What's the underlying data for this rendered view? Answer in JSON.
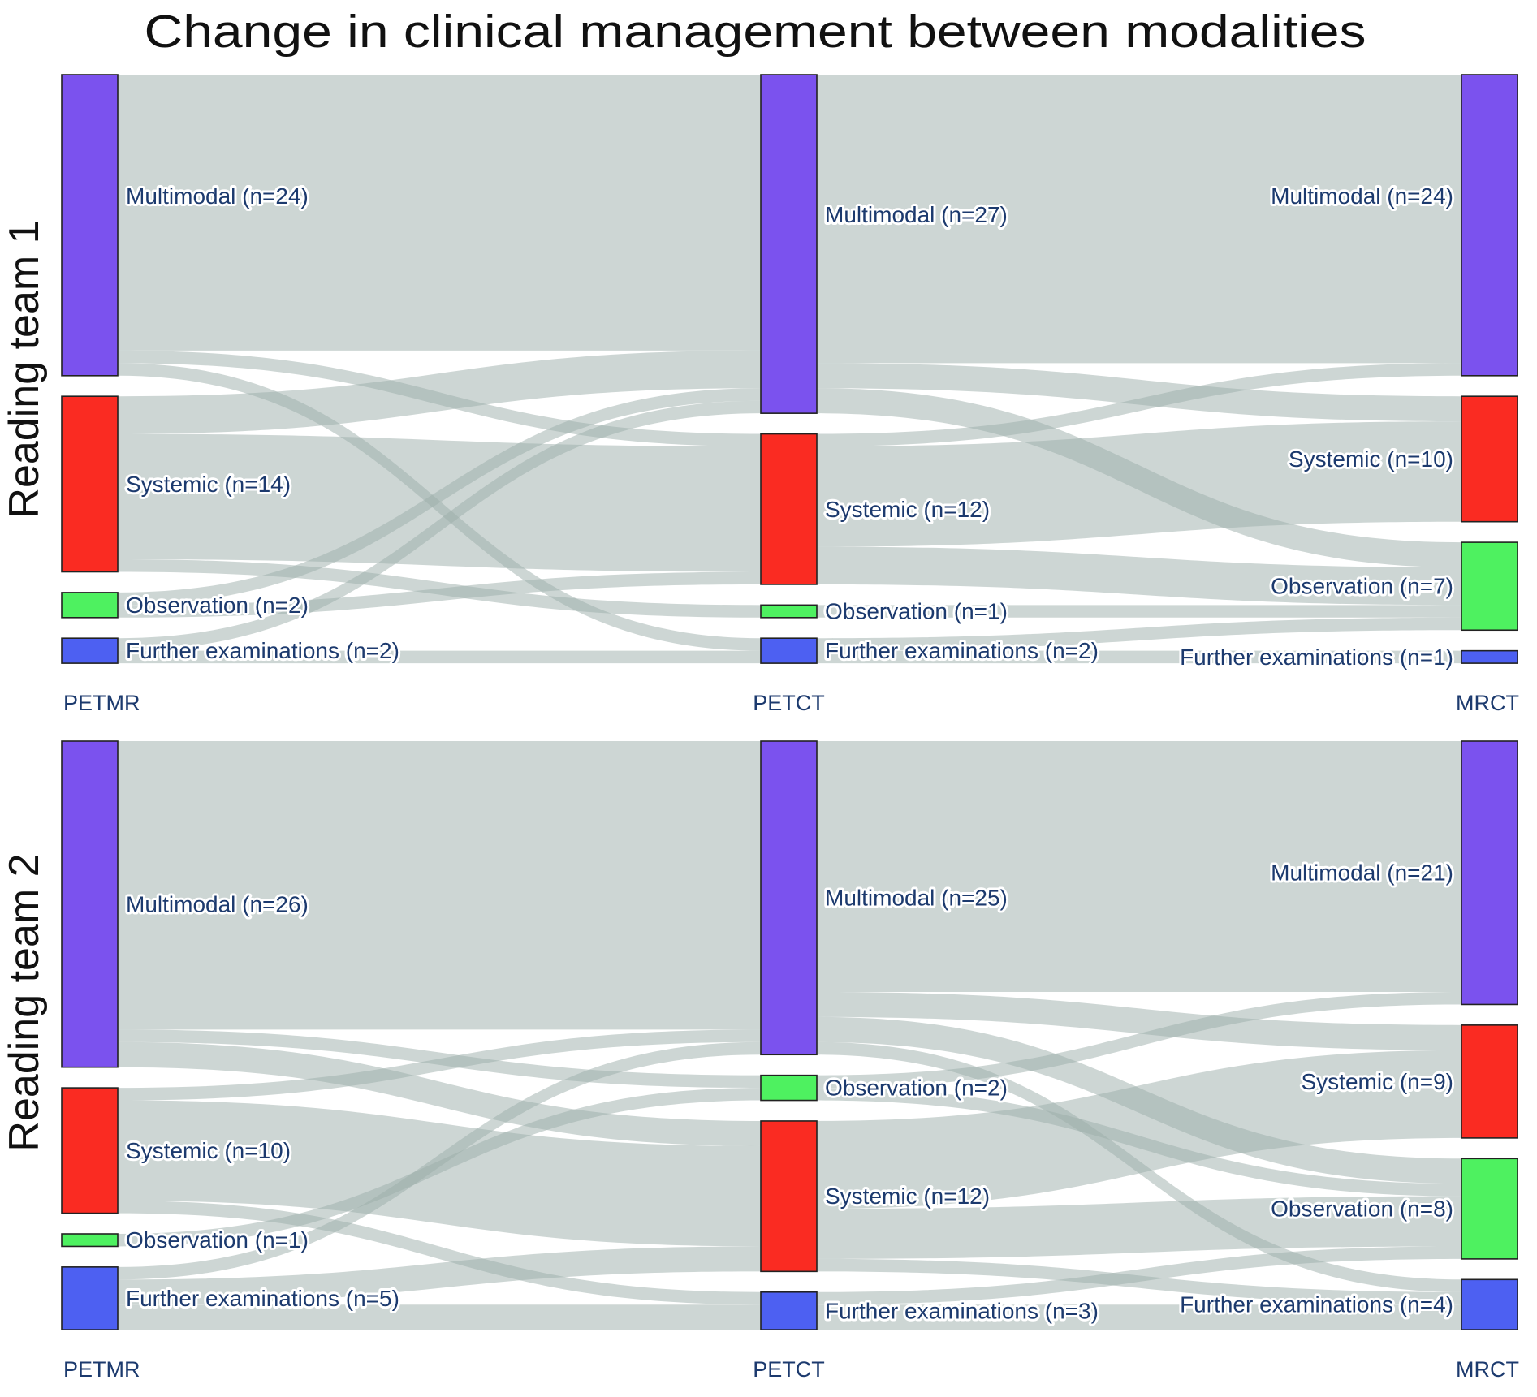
{
  "title": "Change in clinical management between modalities",
  "colors": {
    "Multimodal": "#7b52ee",
    "Systemic": "#fa2b22",
    "Observation": "#4ef160",
    "Further examinations": "#4d60f2",
    "node_stroke": "#222222",
    "flow": "#9bada9",
    "flow_opacity": 0.5,
    "label": "#1c3a6e",
    "title_color": "#111111",
    "row_label_color": "#111111"
  },
  "chart_data": {
    "type": "sankey",
    "title": "Change in clinical management between modalities",
    "diagrams": [
      {
        "row_label": "Reading team 1",
        "columns": [
          "PETMR",
          "PETCT",
          "MRCT"
        ],
        "nodes": [
          [
            {
              "category": "Multimodal",
              "value": 24,
              "label": "Multimodal (n=24)"
            },
            {
              "category": "Systemic",
              "value": 14,
              "label": "Systemic (n=14)"
            },
            {
              "category": "Observation",
              "value": 2,
              "label": "Observation (n=2)"
            },
            {
              "category": "Further examinations",
              "value": 2,
              "label": "Further examinations (n=2)"
            }
          ],
          [
            {
              "category": "Multimodal",
              "value": 27,
              "label": "Multimodal (n=27)"
            },
            {
              "category": "Systemic",
              "value": 12,
              "label": "Systemic (n=12)"
            },
            {
              "category": "Observation",
              "value": 1,
              "label": "Observation (n=1)"
            },
            {
              "category": "Further examinations",
              "value": 2,
              "label": "Further examinations (n=2)"
            }
          ],
          [
            {
              "category": "Multimodal",
              "value": 24,
              "label": "Multimodal (n=24)"
            },
            {
              "category": "Systemic",
              "value": 10,
              "label": "Systemic (n=10)"
            },
            {
              "category": "Observation",
              "value": 7,
              "label": "Observation (n=7)"
            },
            {
              "category": "Further examinations",
              "value": 1,
              "label": "Further examinations (n=1)"
            }
          ]
        ],
        "links": [
          {
            "stage": 0,
            "source": "Multimodal",
            "target": "Multimodal",
            "value": 22
          },
          {
            "stage": 0,
            "source": "Multimodal",
            "target": "Systemic",
            "value": 1
          },
          {
            "stage": 0,
            "source": "Multimodal",
            "target": "Further examinations",
            "value": 1
          },
          {
            "stage": 0,
            "source": "Systemic",
            "target": "Multimodal",
            "value": 3
          },
          {
            "stage": 0,
            "source": "Systemic",
            "target": "Systemic",
            "value": 10
          },
          {
            "stage": 0,
            "source": "Systemic",
            "target": "Observation",
            "value": 1
          },
          {
            "stage": 0,
            "source": "Observation",
            "target": "Multimodal",
            "value": 1
          },
          {
            "stage": 0,
            "source": "Observation",
            "target": "Systemic",
            "value": 1
          },
          {
            "stage": 0,
            "source": "Further examinations",
            "target": "Multimodal",
            "value": 1
          },
          {
            "stage": 0,
            "source": "Further examinations",
            "target": "Further examinations",
            "value": 1
          },
          {
            "stage": 1,
            "source": "Multimodal",
            "target": "Multimodal",
            "value": 23
          },
          {
            "stage": 1,
            "source": "Multimodal",
            "target": "Systemic",
            "value": 2
          },
          {
            "stage": 1,
            "source": "Multimodal",
            "target": "Observation",
            "value": 2
          },
          {
            "stage": 1,
            "source": "Systemic",
            "target": "Multimodal",
            "value": 1
          },
          {
            "stage": 1,
            "source": "Systemic",
            "target": "Systemic",
            "value": 8
          },
          {
            "stage": 1,
            "source": "Systemic",
            "target": "Observation",
            "value": 3
          },
          {
            "stage": 1,
            "source": "Observation",
            "target": "Observation",
            "value": 1
          },
          {
            "stage": 1,
            "source": "Further examinations",
            "target": "Observation",
            "value": 1
          },
          {
            "stage": 1,
            "source": "Further examinations",
            "target": "Further examinations",
            "value": 1
          }
        ]
      },
      {
        "row_label": "Reading team 2",
        "columns": [
          "PETMR",
          "PETCT",
          "MRCT"
        ],
        "nodes": [
          [
            {
              "category": "Multimodal",
              "value": 26,
              "label": "Multimodal (n=26)"
            },
            {
              "category": "Systemic",
              "value": 10,
              "label": "Systemic (n=10)"
            },
            {
              "category": "Observation",
              "value": 1,
              "label": "Observation (n=1)"
            },
            {
              "category": "Further examinations",
              "value": 5,
              "label": "Further examinations (n=5)"
            }
          ],
          [
            {
              "category": "Multimodal",
              "value": 25,
              "label": "Multimodal (n=25)"
            },
            {
              "category": "Observation",
              "value": 2,
              "label": "Observation (n=2)"
            },
            {
              "category": "Systemic",
              "value": 12,
              "label": "Systemic (n=12)"
            },
            {
              "category": "Further examinations",
              "value": 3,
              "label": "Further examinations (n=3)"
            }
          ],
          [
            {
              "category": "Multimodal",
              "value": 21,
              "label": "Multimodal (n=21)"
            },
            {
              "category": "Systemic",
              "value": 9,
              "label": "Systemic (n=9)"
            },
            {
              "category": "Observation",
              "value": 8,
              "label": "Observation (n=8)"
            },
            {
              "category": "Further examinations",
              "value": 4,
              "label": "Further examinations (n=4)"
            }
          ]
        ],
        "links": [
          {
            "stage": 0,
            "source": "Multimodal",
            "target": "Multimodal",
            "value": 23
          },
          {
            "stage": 0,
            "source": "Multimodal",
            "target": "Observation",
            "value": 1
          },
          {
            "stage": 0,
            "source": "Multimodal",
            "target": "Systemic",
            "value": 2
          },
          {
            "stage": 0,
            "source": "Systemic",
            "target": "Multimodal",
            "value": 1
          },
          {
            "stage": 0,
            "source": "Systemic",
            "target": "Systemic",
            "value": 8
          },
          {
            "stage": 0,
            "source": "Systemic",
            "target": "Further examinations",
            "value": 1
          },
          {
            "stage": 0,
            "source": "Observation",
            "target": "Observation",
            "value": 1
          },
          {
            "stage": 0,
            "source": "Further examinations",
            "target": "Multimodal",
            "value": 1
          },
          {
            "stage": 0,
            "source": "Further examinations",
            "target": "Systemic",
            "value": 2
          },
          {
            "stage": 0,
            "source": "Further examinations",
            "target": "Further examinations",
            "value": 2
          },
          {
            "stage": 1,
            "source": "Multimodal",
            "target": "Multimodal",
            "value": 20
          },
          {
            "stage": 1,
            "source": "Multimodal",
            "target": "Systemic",
            "value": 2
          },
          {
            "stage": 1,
            "source": "Multimodal",
            "target": "Observation",
            "value": 2
          },
          {
            "stage": 1,
            "source": "Multimodal",
            "target": "Further examinations",
            "value": 1
          },
          {
            "stage": 1,
            "source": "Observation",
            "target": "Multimodal",
            "value": 1
          },
          {
            "stage": 1,
            "source": "Observation",
            "target": "Observation",
            "value": 1
          },
          {
            "stage": 1,
            "source": "Systemic",
            "target": "Systemic",
            "value": 7
          },
          {
            "stage": 1,
            "source": "Systemic",
            "target": "Observation",
            "value": 4
          },
          {
            "stage": 1,
            "source": "Systemic",
            "target": "Further examinations",
            "value": 1
          },
          {
            "stage": 1,
            "source": "Further examinations",
            "target": "Observation",
            "value": 1
          },
          {
            "stage": 1,
            "source": "Further examinations",
            "target": "Further examinations",
            "value": 2
          }
        ]
      }
    ],
    "layout_hint": {
      "node_order_note": "team 2 PETCT column order is Multimodal, Observation, Systemic, Further examinations"
    }
  }
}
